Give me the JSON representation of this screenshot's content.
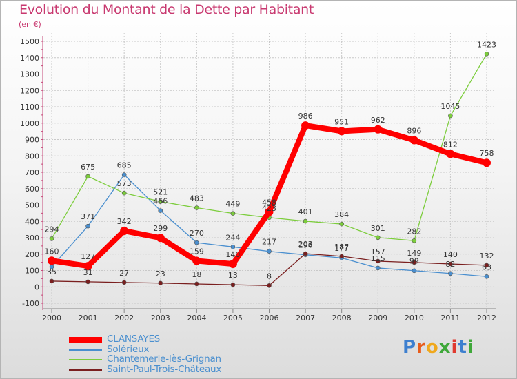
{
  "title": "Evolution du Montant de la Dette par Habitant",
  "unit_label": "(en €)",
  "logo": {
    "letters": [
      "P",
      "r",
      "o",
      "x",
      "i",
      "t",
      "i"
    ],
    "colors": [
      "#3d7fcf",
      "#e85c1a",
      "#f0a81c",
      "#3fa83a",
      "#e03a2f",
      "#3d7fcf",
      "#3fa83a"
    ]
  },
  "chart_data": {
    "type": "line",
    "title": "Evolution du Montant de la Dette par Habitant",
    "ylabel": "(en €)",
    "xlabel": "",
    "x": [
      "2000",
      "2001",
      "2002",
      "2003",
      "2004",
      "2005",
      "2006",
      "2007",
      "2008",
      "2009",
      "2010",
      "2011",
      "2012"
    ],
    "ylim": [
      -100,
      1500
    ],
    "yticks": [
      "-100",
      "0",
      "100",
      "200",
      "300",
      "400",
      "500",
      "600",
      "700",
      "800",
      "900",
      "1000",
      "1100",
      "1200",
      "1300",
      "1400",
      "1500"
    ],
    "grid": true,
    "legend_position": "bottom-left",
    "series": [
      {
        "name": "CLANSAYES",
        "color": "#ff0000",
        "values": [
          160,
          127,
          342,
          299,
          159,
          140,
          458,
          986,
          951,
          962,
          896,
          812,
          758
        ],
        "labels": [
          "160",
          "127",
          "342",
          "299",
          "159",
          "140",
          "458",
          "986",
          "951",
          "962",
          "896",
          "812",
          "758"
        ]
      },
      {
        "name": "Solérieux",
        "color": "#4a8fcf",
        "values": [
          122,
          371,
          685,
          466,
          270,
          244,
          217,
          196,
          177,
          115,
          99,
          82,
          63
        ],
        "labels": [
          "",
          "371",
          "685",
          "466",
          "270",
          "244",
          "217",
          "196",
          "177",
          "115",
          "99",
          "82",
          "63"
        ]
      },
      {
        "name": "Chantemerle-lès-Grignan",
        "color": "#7ccd3c",
        "values": [
          294,
          675,
          573,
          521,
          483,
          449,
          423,
          401,
          384,
          301,
          282,
          1045,
          1423
        ],
        "labels": [
          "294",
          "675",
          "573",
          "521",
          "483",
          "449",
          "423",
          "401",
          "384",
          "301",
          "282",
          "1045",
          "1423"
        ]
      },
      {
        "name": "Saint-Paul-Trois-Châteaux",
        "color": "#7a1f1f",
        "values": [
          35,
          31,
          27,
          23,
          18,
          13,
          8,
          203,
          187,
          157,
          149,
          140,
          132
        ],
        "labels": [
          "35",
          "31",
          "27",
          "23",
          "18",
          "13",
          "8",
          "203",
          "187",
          "157",
          "149",
          "140",
          "132"
        ]
      }
    ]
  }
}
